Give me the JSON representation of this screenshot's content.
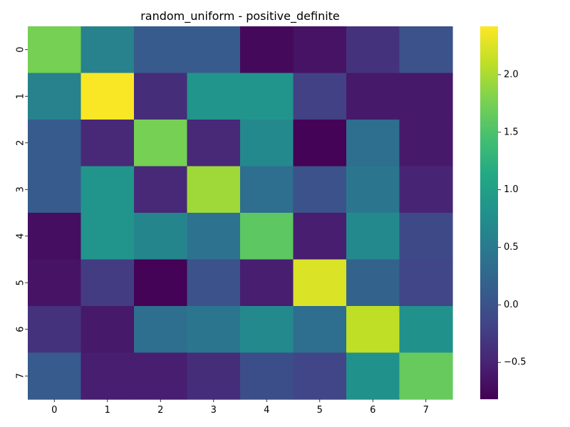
{
  "chart_data": {
    "type": "heatmap",
    "title": "random_uniform - positive_definite",
    "xlabel": "",
    "ylabel": "",
    "x_labels": [
      "0",
      "1",
      "2",
      "3",
      "4",
      "5",
      "6",
      "7"
    ],
    "y_labels": [
      "0",
      "1",
      "2",
      "3",
      "4",
      "5",
      "6",
      "7"
    ],
    "matrix": [
      [
        1.75,
        0.6,
        0.1,
        0.1,
        -0.75,
        -0.65,
        -0.35,
        0.0
      ],
      [
        0.6,
        2.4,
        -0.4,
        0.85,
        0.85,
        -0.2,
        -0.6,
        -0.6
      ],
      [
        0.1,
        -0.45,
        1.75,
        -0.45,
        0.7,
        -0.8,
        0.35,
        -0.6
      ],
      [
        0.1,
        0.85,
        -0.45,
        1.95,
        0.35,
        0.0,
        0.45,
        -0.5
      ],
      [
        -0.7,
        0.85,
        0.65,
        0.4,
        1.6,
        -0.55,
        0.7,
        -0.1
      ],
      [
        -0.65,
        -0.25,
        -0.8,
        0.0,
        -0.55,
        2.25,
        0.2,
        -0.15
      ],
      [
        -0.35,
        -0.6,
        0.35,
        0.45,
        0.7,
        0.35,
        2.1,
        0.8
      ],
      [
        0.1,
        -0.55,
        -0.55,
        -0.4,
        -0.05,
        -0.15,
        0.8,
        1.65
      ]
    ],
    "colormap": "viridis",
    "vmin": -0.82,
    "vmax": 2.42,
    "colorbar_ticks": [
      -0.5,
      0.0,
      0.5,
      1.0,
      1.5,
      2.0
    ],
    "colorbar_tick_labels": [
      "−0.5",
      "0.0",
      "0.5",
      "1.0",
      "1.5",
      "2.0"
    ]
  }
}
